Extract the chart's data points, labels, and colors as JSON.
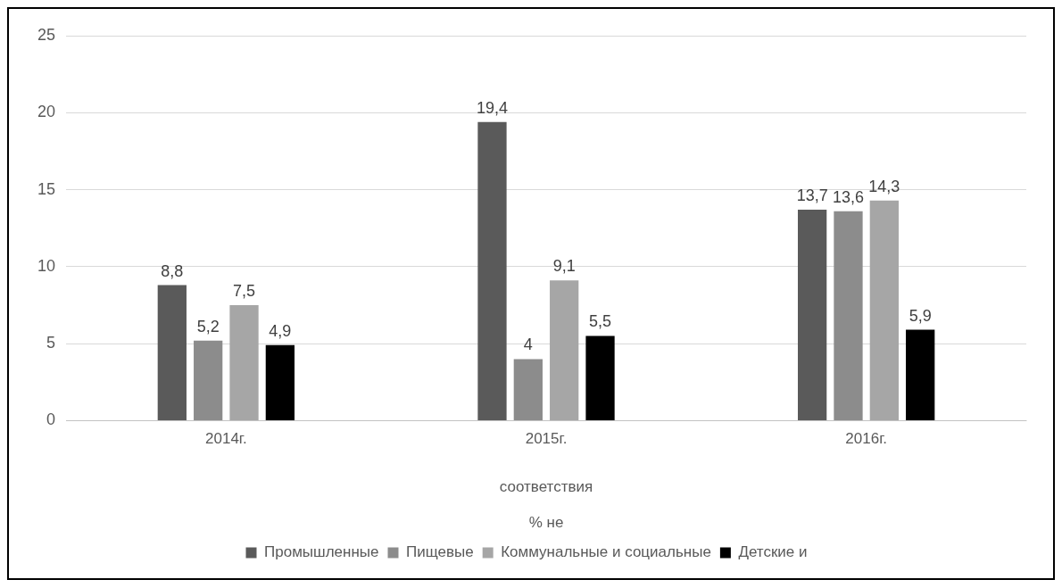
{
  "chart_data": {
    "type": "bar",
    "categories": [
      "2014г.",
      "2015г.",
      "2016г."
    ],
    "series": [
      {
        "name": "Промышленные",
        "color": "#5a5a5a",
        "values": [
          8.8,
          19.4,
          13.7
        ],
        "value_labels": [
          "8,8",
          "19,4",
          "13,7"
        ]
      },
      {
        "name": "Пищевые",
        "color": "#8c8c8c",
        "values": [
          5.2,
          4,
          13.6
        ],
        "value_labels": [
          "5,2",
          "4",
          "13,6"
        ]
      },
      {
        "name": "Коммунальные и социальные",
        "color": "#a6a6a6",
        "values": [
          7.5,
          9.1,
          14.3
        ],
        "value_labels": [
          "7,5",
          "9,1",
          "14,3"
        ]
      },
      {
        "name": "Детские и",
        "color": "#000000",
        "values": [
          4.9,
          5.5,
          5.9
        ],
        "value_labels": [
          "4,9",
          "5,5",
          "5,9"
        ]
      }
    ],
    "xlabel": "соответствия",
    "annotations": [
      "% не"
    ],
    "ylim": [
      0,
      25
    ],
    "yticks": [
      0,
      5,
      10,
      15,
      20,
      25
    ],
    "grid": "y",
    "legend": "bottom"
  }
}
